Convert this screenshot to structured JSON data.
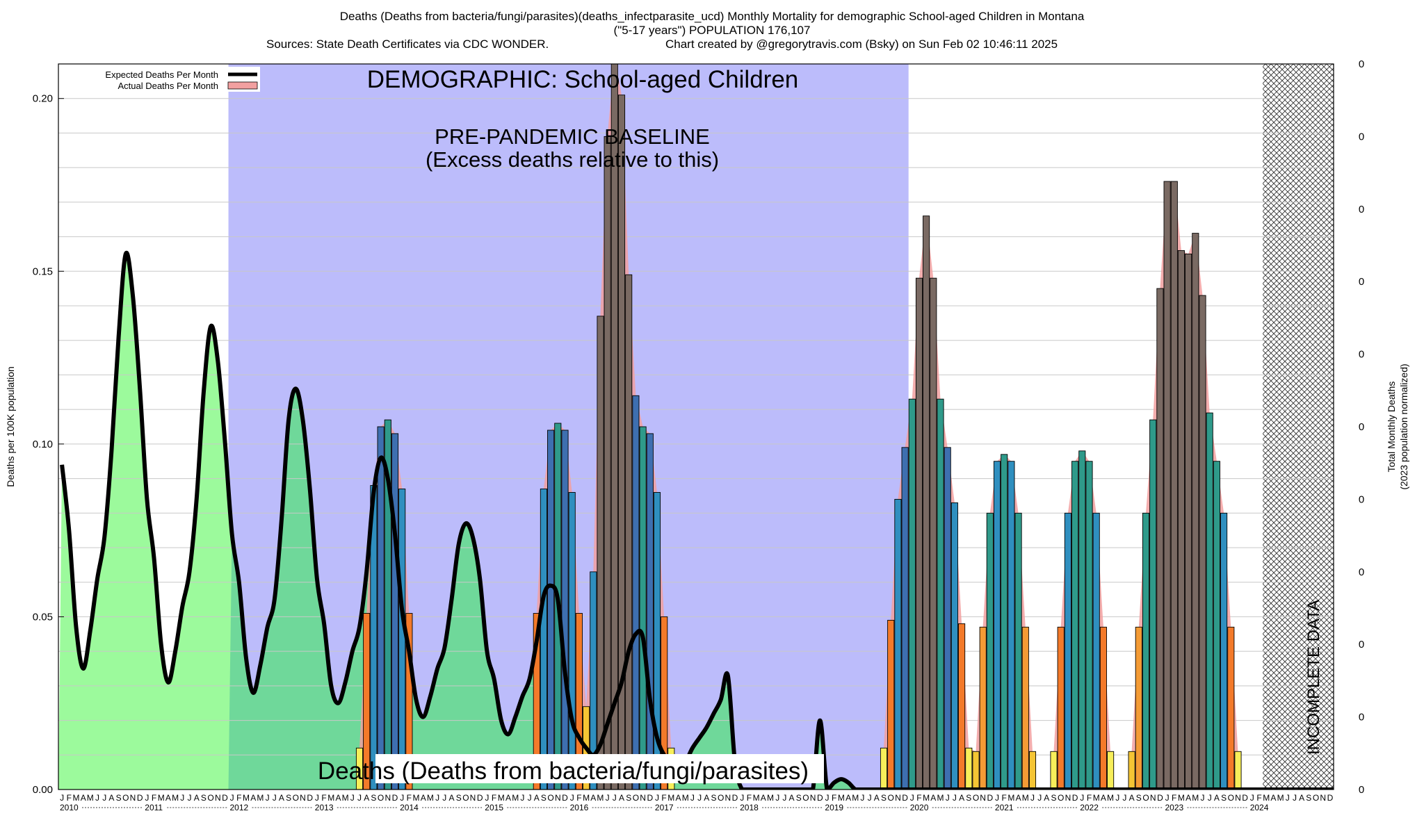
{
  "header": {
    "title_line1": "Deaths (Deaths from bacteria/fungi/parasites)(deaths_infectparasite_ucd) Monthly Mortality for demographic School-aged Children in Montana",
    "title_line2": "(\"5-17 years\") POPULATION 176,107",
    "sources": "Sources: State Death Certificates via CDC WONDER.",
    "credit": "Chart created by @gregorytravis.com (Bsky) on Sun Feb 02 10:46:11 2025"
  },
  "annotations": {
    "demographic": "DEMOGRAPHIC: School-aged Children",
    "baseline_line1": "PRE-PANDEMIC BASELINE",
    "baseline_line2": "(Excess deaths relative to this)",
    "bottom_label": "Deaths (Deaths from bacteria/fungi/parasites)",
    "incomplete": "INCOMPLETE DATA"
  },
  "legend": {
    "expected": "Expected Deaths Per Month",
    "actual": "Actual Deaths Per Month"
  },
  "axes": {
    "y_left_label": "Deaths per 100K population",
    "y_right_label_line1": "Total Monthly Deaths",
    "y_right_label_line2": "(2023 population normalized)",
    "y_left_ticks": [
      "0.00",
      "0.05",
      "0.10",
      "0.15",
      "0.20"
    ],
    "y_right_ticks": [
      "0",
      "0",
      "0",
      "0",
      "0",
      "0",
      "0",
      "0",
      "0",
      "0",
      "0"
    ],
    "month_letters": [
      "J",
      "F",
      "M",
      "A",
      "M",
      "J",
      "J",
      "A",
      "S",
      "O",
      "N",
      "D"
    ],
    "year_labels": [
      "2010",
      "2011",
      "2012",
      "2013",
      "2014",
      "2015",
      "2016",
      "2017",
      "2018",
      "2019",
      "2020",
      "2021",
      "2022",
      "2023",
      "2024"
    ]
  },
  "colors": {
    "plot_bg": "#ffffff",
    "baseline_region": "#bcbcfb",
    "green_fill": "#9cfa9c",
    "green_fill_in_baseline": "#6fd89a",
    "pink_band": "#f2a0a0",
    "expected_line": "#000000",
    "bar_palette": [
      "#f7ee5a",
      "#f5c534",
      "#f49b35",
      "#f37a2a",
      "#2f8fbf",
      "#2f9a8a",
      "#3e6fb0",
      "#7a6a63"
    ]
  },
  "chart_data": {
    "type": "bar",
    "x_range": [
      "2010-01",
      "2024-12"
    ],
    "ylim": [
      0,
      0.21
    ],
    "baseline_period": [
      "2012-01",
      "2019-12"
    ],
    "incomplete_period": [
      "2024-03",
      "2024-12"
    ],
    "series": [
      {
        "name": "Expected Deaths Per Month",
        "kind": "line",
        "values": [
          0.094,
          0.075,
          0.047,
          0.035,
          0.046,
          0.061,
          0.073,
          0.098,
          0.131,
          0.155,
          0.143,
          0.116,
          0.084,
          0.067,
          0.042,
          0.031,
          0.04,
          0.053,
          0.063,
          0.084,
          0.115,
          0.134,
          0.124,
          0.101,
          0.074,
          0.06,
          0.038,
          0.028,
          0.036,
          0.047,
          0.055,
          0.078,
          0.107,
          0.116,
          0.107,
          0.087,
          0.061,
          0.048,
          0.03,
          0.025,
          0.031,
          0.04,
          0.047,
          0.063,
          0.086,
          0.096,
          0.09,
          0.074,
          0.052,
          0.04,
          0.026,
          0.021,
          0.027,
          0.035,
          0.041,
          0.055,
          0.071,
          0.077,
          0.073,
          0.061,
          0.04,
          0.032,
          0.02,
          0.016,
          0.021,
          0.027,
          0.032,
          0.043,
          0.056,
          0.059,
          0.055,
          0.034,
          0.02,
          0.015,
          0.012,
          0.01,
          0.013,
          0.019,
          0.025,
          0.031,
          0.04,
          0.045,
          0.044,
          0.026,
          0.015,
          0.01,
          0.008,
          0.007,
          0.008,
          0.012,
          0.015,
          0.018,
          0.022,
          0.026,
          0.033,
          0.008,
          0.0,
          0.0,
          0.0,
          0.0,
          0.0,
          0.0,
          0.0,
          0.0,
          0.0,
          0.0,
          0.0,
          0.02,
          0.0,
          0.002,
          0.003,
          0.002,
          0.0,
          0.0,
          0.0,
          0.0,
          0.0,
          0.0,
          0.0,
          0.0,
          0.0,
          0.0,
          0.0,
          0.0,
          0.0,
          0.0,
          0.0,
          0.0,
          0.0,
          0.0,
          0.0,
          0.0,
          0.0,
          0.0,
          0.0,
          0.0,
          0.0,
          0.0,
          0.0,
          0.0,
          0.0,
          0.0,
          0.0,
          0.0,
          0.0,
          0.0,
          0.0,
          0.0,
          0.0,
          0.0,
          0.0,
          0.0,
          0.0,
          0.0,
          0.0,
          0.0,
          0.0,
          0.0,
          0.0,
          0.0,
          0.0,
          0.0,
          0.0,
          0.0,
          0.0,
          0.0,
          0.0,
          0.0,
          0.0,
          0.0,
          0.0,
          0.0,
          0.0,
          0.0,
          0.0,
          0.0,
          0.0,
          0.0,
          0.0,
          0.0,
          0.0
        ]
      },
      {
        "name": "Actual Deaths Per Month",
        "kind": "bar",
        "values": [
          0,
          0,
          0,
          0,
          0,
          0,
          0,
          0,
          0,
          0,
          0,
          0,
          0,
          0,
          0,
          0,
          0,
          0,
          0,
          0,
          0,
          0,
          0,
          0,
          0,
          0,
          0,
          0,
          0,
          0,
          0,
          0,
          0,
          0,
          0,
          0,
          0,
          0,
          0,
          0,
          0,
          0,
          0.012,
          0.051,
          0.088,
          0.105,
          0.107,
          0.103,
          0.087,
          0.051,
          0,
          0,
          0,
          0,
          0,
          0,
          0,
          0,
          0,
          0,
          0,
          0,
          0,
          0,
          0,
          0,
          0,
          0.051,
          0.087,
          0.104,
          0.106,
          0.104,
          0.086,
          0.051,
          0.024,
          0.063,
          0.137,
          0.189,
          0.212,
          0.201,
          0.149,
          0.114,
          0.105,
          0.103,
          0.086,
          0.05,
          0.012,
          0,
          0,
          0,
          0,
          0,
          0,
          0,
          0,
          0,
          0,
          0,
          0,
          0,
          0,
          0,
          0,
          0,
          0,
          0,
          0,
          0,
          0,
          0,
          0,
          0,
          0,
          0,
          0,
          0,
          0,
          0,
          0,
          0,
          0,
          0,
          0,
          0,
          0,
          0,
          0,
          0,
          0,
          0,
          0,
          0,
          0,
          0,
          0,
          0,
          0,
          0,
          0,
          0,
          0,
          0,
          0,
          0,
          0,
          0,
          0,
          0,
          0,
          0,
          0,
          0,
          0,
          0,
          0,
          0,
          0,
          0,
          0,
          0,
          0,
          0,
          0,
          0,
          0,
          0,
          0,
          0,
          0,
          0,
          0,
          0,
          0,
          0,
          0,
          0,
          0,
          0,
          0,
          0,
          0,
          0,
          0,
          0,
          0,
          0,
          0,
          0,
          0,
          0,
          0,
          0,
          0,
          0,
          0,
          0,
          0,
          0
        ]
      }
    ],
    "later_bars": [
      {
        "start": "2019-09",
        "values": [
          0.012,
          0.049,
          0.084,
          0.099,
          0.113,
          0.148,
          0.166,
          0.148,
          0.113,
          0.099,
          0.083,
          0.048,
          0.012
        ]
      },
      {
        "start": "2020-10",
        "values": [
          0.011,
          0.047,
          0.08,
          0.095,
          0.097,
          0.095,
          0.08,
          0.047,
          0.011
        ]
      },
      {
        "start": "2021-09",
        "values": [
          0.011,
          0.047,
          0.08,
          0.095,
          0.098,
          0.095,
          0.08,
          0.047,
          0.011
        ]
      },
      {
        "start": "2022-08",
        "values": [
          0.011,
          0.047,
          0.08,
          0.107,
          0.145,
          0.176,
          0.176,
          0.156,
          0.155,
          0.161,
          0.143,
          0.109,
          0.095,
          0.08,
          0.047,
          0.011
        ]
      }
    ]
  }
}
